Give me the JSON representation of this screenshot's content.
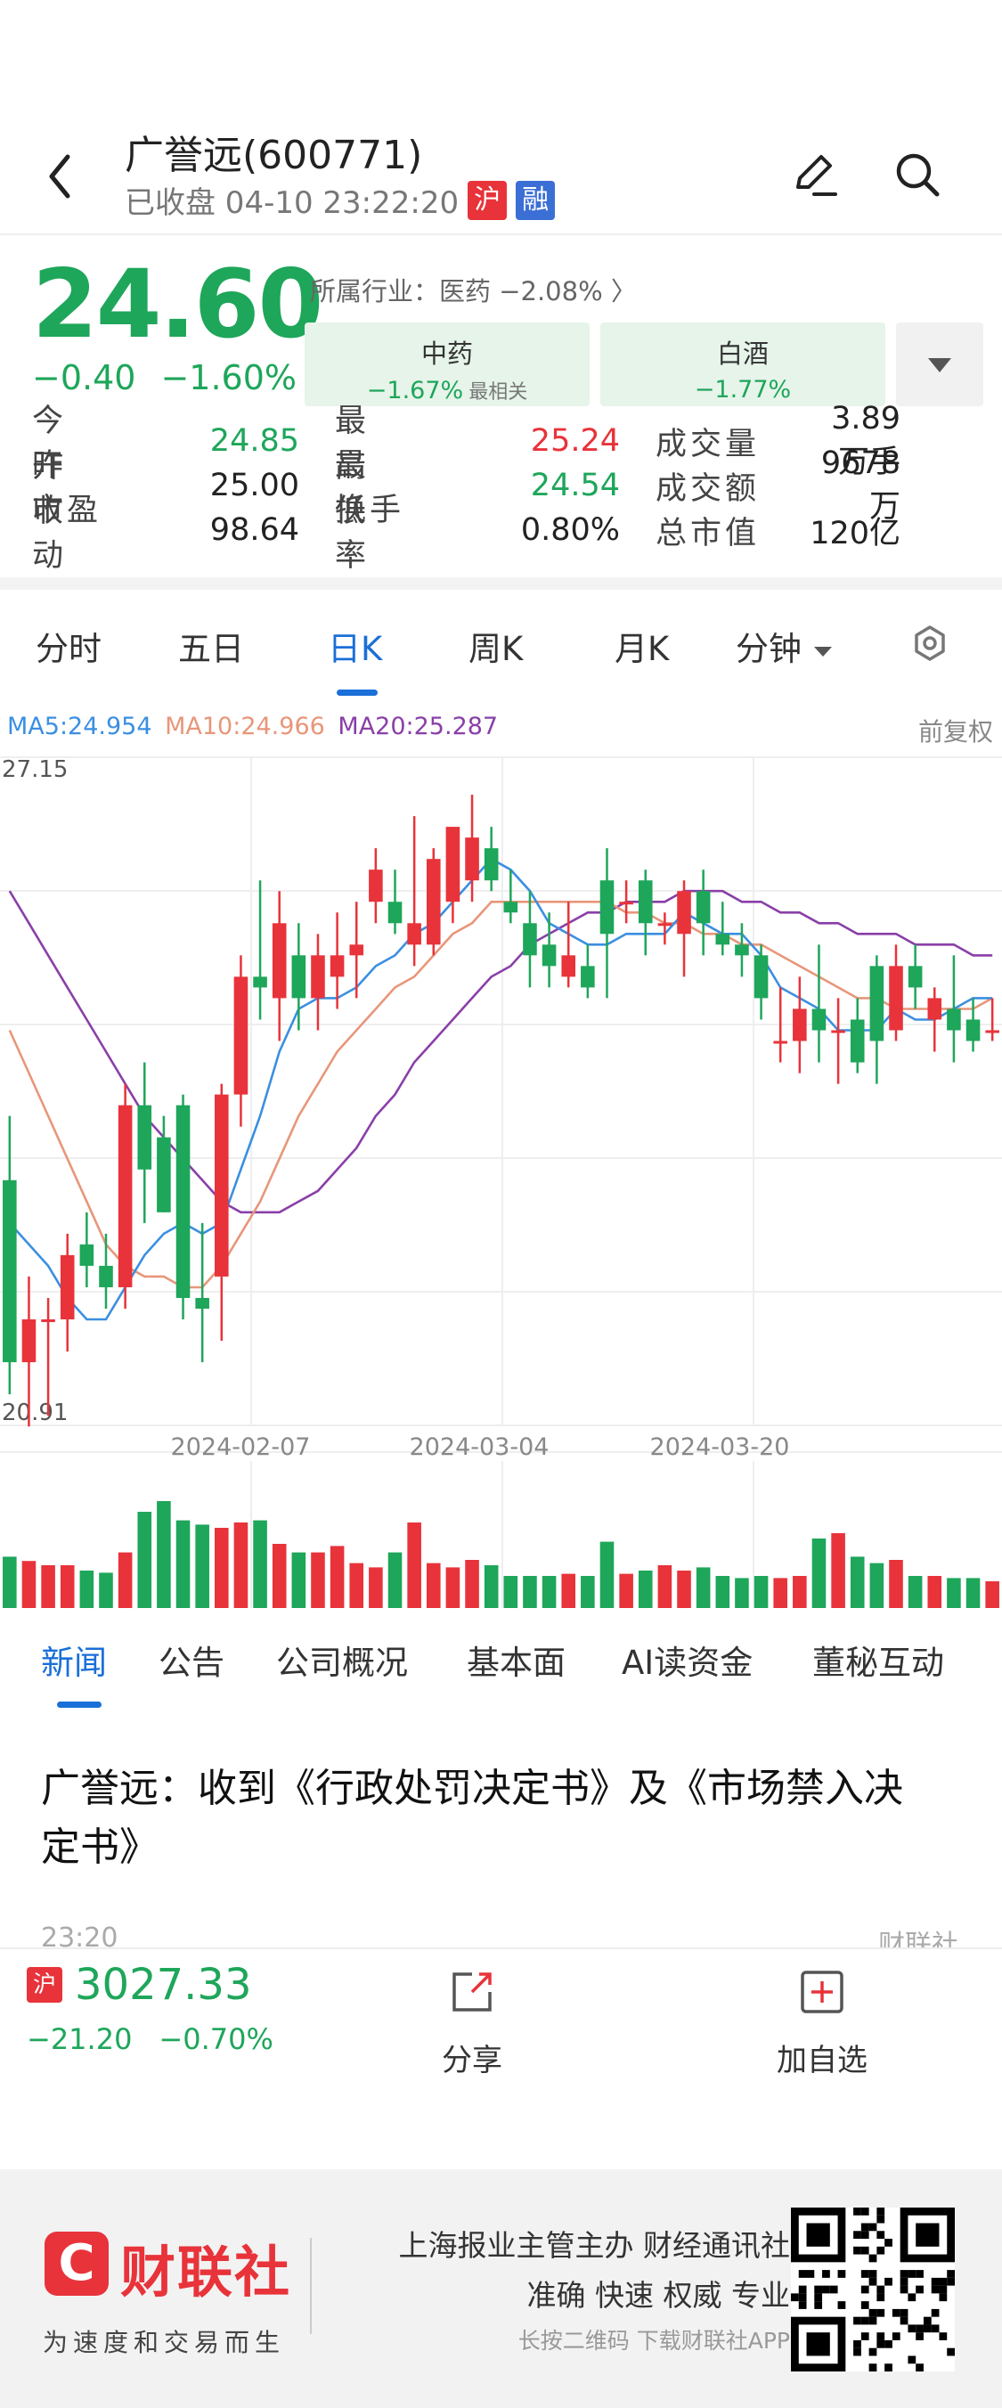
{
  "header": {
    "title": "广誉远(600771)",
    "status": "已收盘 04-10 23:22:20",
    "badge_sh": "沪",
    "badge_rong": "融"
  },
  "quote": {
    "price": "24.60",
    "change": "−0.40",
    "change_pct": "−1.60%",
    "industry": "所属行业：医药 −2.08% 〉",
    "sectors": [
      {
        "name": "中药",
        "pct": "−1.67%",
        "tag": "最相关"
      },
      {
        "name": "白酒",
        "pct": "−1.77%"
      }
    ],
    "stats": [
      [
        {
          "l": "今　开",
          "v": "24.85",
          "c": "green"
        },
        {
          "l": "最　高",
          "v": "25.24",
          "c": "red"
        },
        {
          "l": "成交量",
          "v": "3.89万手",
          "c": "dark"
        }
      ],
      [
        {
          "l": "昨　收",
          "v": "25.00",
          "c": "dark"
        },
        {
          "l": "最　低",
          "v": "24.54",
          "c": "green"
        },
        {
          "l": "成交额",
          "v": "9678万",
          "c": "dark"
        }
      ],
      [
        {
          "l": "市盈动",
          "v": "98.64",
          "c": "dark"
        },
        {
          "l": "换手率",
          "v": "0.80%",
          "c": "dark"
        },
        {
          "l": "总市值",
          "v": "120亿",
          "c": "dark"
        }
      ]
    ]
  },
  "tabs": [
    "分时",
    "五日",
    "日K",
    "周K",
    "月K",
    "分钟"
  ],
  "chart_data": {
    "type": "candlestick",
    "ma": {
      "ma5": "MA5:24.954",
      "ma10": "MA10:24.966",
      "ma20": "MA20:25.287"
    },
    "adjust": "前复权",
    "ylim": [
      20.91,
      27.15
    ],
    "y_max_label": "27.15",
    "y_min_label": "20.91",
    "x_labels": [
      "2024-02-07",
      "2024-03-04",
      "2024-03-20"
    ],
    "candles": [
      [
        23.2,
        23.8,
        21.2,
        21.5
      ],
      [
        21.5,
        22.3,
        20.9,
        21.9
      ],
      [
        21.9,
        22.1,
        21.0,
        21.9
      ],
      [
        21.9,
        22.7,
        21.6,
        22.5
      ],
      [
        22.6,
        22.9,
        22.2,
        22.4
      ],
      [
        22.4,
        22.7,
        22.0,
        22.2
      ],
      [
        22.2,
        24.1,
        22.0,
        23.9
      ],
      [
        23.9,
        24.3,
        22.8,
        23.3
      ],
      [
        23.6,
        23.8,
        22.9,
        22.9
      ],
      [
        23.9,
        24.0,
        21.9,
        22.1
      ],
      [
        22.1,
        22.8,
        21.5,
        22.0
      ],
      [
        22.3,
        24.1,
        21.7,
        24.0
      ],
      [
        24.0,
        25.3,
        23.7,
        25.1
      ],
      [
        25.1,
        26.0,
        24.7,
        25.0
      ],
      [
        24.9,
        25.9,
        24.5,
        25.6
      ],
      [
        25.3,
        25.6,
        24.6,
        24.9
      ],
      [
        24.9,
        25.5,
        24.6,
        25.3
      ],
      [
        25.1,
        25.7,
        24.8,
        25.3
      ],
      [
        25.3,
        25.8,
        24.9,
        25.4
      ],
      [
        25.8,
        26.3,
        25.6,
        26.1
      ],
      [
        25.8,
        26.1,
        25.5,
        25.6
      ],
      [
        25.4,
        26.6,
        25.2,
        25.6
      ],
      [
        25.4,
        26.3,
        25.3,
        26.2
      ],
      [
        25.8,
        26.5,
        25.6,
        26.5
      ],
      [
        26.0,
        26.8,
        25.8,
        26.4
      ],
      [
        26.3,
        26.5,
        25.9,
        26.0
      ],
      [
        25.8,
        26.1,
        25.6,
        25.7
      ],
      [
        25.6,
        25.9,
        25.0,
        25.3
      ],
      [
        25.4,
        25.7,
        25.0,
        25.2
      ],
      [
        25.1,
        25.8,
        25.0,
        25.3
      ],
      [
        25.2,
        25.4,
        24.9,
        25.0
      ],
      [
        26.0,
        26.3,
        24.9,
        25.5
      ],
      [
        25.8,
        26.0,
        25.6,
        25.8
      ],
      [
        26.0,
        26.1,
        25.3,
        25.6
      ],
      [
        25.6,
        25.7,
        25.4,
        25.6
      ],
      [
        25.5,
        26.0,
        25.1,
        25.9
      ],
      [
        25.9,
        26.1,
        25.3,
        25.6
      ],
      [
        25.5,
        25.8,
        25.3,
        25.4
      ],
      [
        25.4,
        25.6,
        25.1,
        25.3
      ],
      [
        25.3,
        25.4,
        24.7,
        24.9
      ],
      [
        24.5,
        25.0,
        24.3,
        24.5
      ],
      [
        24.5,
        25.1,
        24.2,
        24.8
      ],
      [
        24.8,
        25.4,
        24.3,
        24.6
      ],
      [
        24.6,
        24.9,
        24.1,
        24.6
      ],
      [
        24.7,
        24.9,
        24.2,
        24.3
      ],
      [
        25.2,
        25.3,
        24.1,
        24.5
      ],
      [
        24.6,
        25.4,
        24.5,
        25.2
      ],
      [
        25.2,
        25.4,
        24.8,
        25.0
      ],
      [
        24.7,
        25.0,
        24.4,
        24.9
      ],
      [
        24.8,
        25.3,
        24.3,
        24.6
      ],
      [
        24.7,
        24.9,
        24.4,
        24.5
      ],
      [
        24.6,
        24.9,
        24.5,
        24.6
      ]
    ],
    "ma5": [
      22.8,
      22.6,
      22.4,
      22.1,
      21.9,
      21.9,
      22.2,
      22.5,
      22.7,
      22.8,
      22.7,
      22.8,
      23.3,
      23.8,
      24.4,
      24.8,
      24.9,
      24.9,
      25.0,
      25.2,
      25.3,
      25.5,
      25.6,
      25.8,
      26.0,
      26.2,
      26.1,
      25.9,
      25.6,
      25.5,
      25.4,
      25.4,
      25.5,
      25.5,
      25.5,
      25.7,
      25.6,
      25.5,
      25.5,
      25.3,
      25.0,
      24.9,
      24.8,
      24.6,
      24.6,
      24.6,
      24.8,
      24.7,
      24.7,
      24.8,
      24.9,
      24.9
    ],
    "ma10": [
      24.6,
      24.2,
      23.8,
      23.4,
      23.0,
      22.6,
      22.4,
      22.3,
      22.3,
      22.2,
      22.2,
      22.4,
      22.7,
      23.0,
      23.4,
      23.8,
      24.1,
      24.4,
      24.6,
      24.8,
      25.0,
      25.1,
      25.3,
      25.5,
      25.6,
      25.8,
      25.8,
      25.8,
      25.8,
      25.8,
      25.8,
      25.8,
      25.7,
      25.7,
      25.6,
      25.6,
      25.5,
      25.5,
      25.4,
      25.4,
      25.3,
      25.2,
      25.1,
      25.0,
      24.9,
      24.9,
      24.8,
      24.8,
      24.8,
      24.8,
      24.8,
      24.9
    ],
    "ma20": [
      25.9,
      25.6,
      25.3,
      25.0,
      24.7,
      24.4,
      24.1,
      23.8,
      23.6,
      23.4,
      23.2,
      23.0,
      22.9,
      22.9,
      22.9,
      23.0,
      23.1,
      23.3,
      23.5,
      23.8,
      24.0,
      24.3,
      24.5,
      24.7,
      24.9,
      25.1,
      25.2,
      25.4,
      25.5,
      25.6,
      25.7,
      25.7,
      25.8,
      25.8,
      25.8,
      25.9,
      25.9,
      25.9,
      25.8,
      25.8,
      25.7,
      25.7,
      25.6,
      25.6,
      25.5,
      25.5,
      25.5,
      25.4,
      25.4,
      25.4,
      25.3,
      25.3
    ],
    "volume": [
      48,
      44,
      40,
      40,
      35,
      33,
      52,
      90,
      100,
      82,
      78,
      75,
      80,
      82,
      60,
      52,
      52,
      58,
      42,
      38,
      52,
      80,
      42,
      38,
      45,
      40,
      30,
      30,
      30,
      32,
      30,
      62,
      32,
      35,
      40,
      35,
      38,
      30,
      28,
      30,
      28,
      30,
      65,
      70,
      48,
      42,
      45,
      30,
      30,
      28,
      28,
      25
    ]
  },
  "news_tabs": [
    "新闻",
    "公告",
    "公司概况",
    "基本面",
    "AI读资金",
    "董秘互动"
  ],
  "news": {
    "headline": "广誉远：收到《行政处罚决定书》及《市场禁入决定书》",
    "time": "23:20",
    "source": "财联社"
  },
  "index": {
    "badge": "沪",
    "value": "3027.33",
    "change": "−21.20",
    "change_pct": "−0.70%"
  },
  "actions": {
    "share": "分享",
    "add": "加自选"
  },
  "footer": {
    "logo": "财联社",
    "logo_letter": "C",
    "slogan": "为速度和交易而生",
    "line1": "上海报业主管主办 财经通讯社",
    "line2": "准确 快速 权威 专业",
    "line3": "长按二维码 下载财联社APP"
  },
  "colors": {
    "up": "#e8333a",
    "down": "#1ea65a",
    "ma5": "#3b8fe0",
    "ma10": "#e8967a",
    "ma20": "#8a3fa8",
    "accent": "#1a6fd8"
  }
}
